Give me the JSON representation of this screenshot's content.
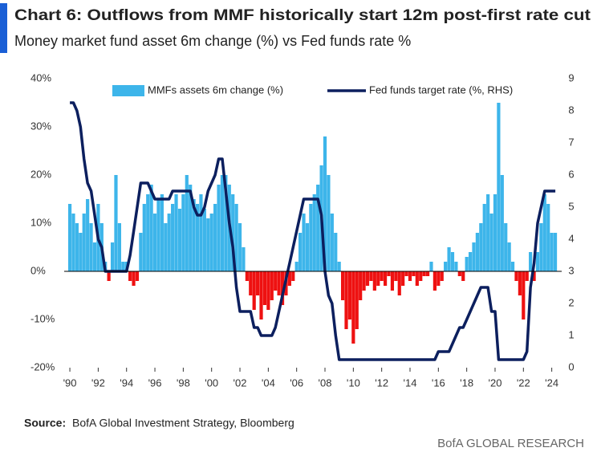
{
  "chart_data": {
    "type": "bar",
    "title": "Chart 6: Outflows from MMF historically start 12m post-first rate cut",
    "subtitle": "Money market fund asset 6m change (%) vs Fed funds rate %",
    "source_label": "Source:",
    "source": "BofA Global Investment Strategy, Bloomberg",
    "brand": "BofA GLOBAL RESEARCH",
    "xlim": [
      1989.6,
      2024.7
    ],
    "xticks": [
      {
        "value": 1990,
        "label": "'90"
      },
      {
        "value": 1992,
        "label": "'92"
      },
      {
        "value": 1994,
        "label": "'94"
      },
      {
        "value": 1996,
        "label": "'96"
      },
      {
        "value": 1998,
        "label": "'98"
      },
      {
        "value": 2000,
        "label": "'00"
      },
      {
        "value": 2002,
        "label": "'02"
      },
      {
        "value": 2004,
        "label": "'04"
      },
      {
        "value": 2006,
        "label": "'06"
      },
      {
        "value": 2008,
        "label": "'08"
      },
      {
        "value": 2010,
        "label": "'10"
      },
      {
        "value": 2012,
        "label": "'12"
      },
      {
        "value": 2014,
        "label": "'14"
      },
      {
        "value": 2016,
        "label": "'16"
      },
      {
        "value": 2018,
        "label": "'18"
      },
      {
        "value": 2020,
        "label": "'20"
      },
      {
        "value": 2022,
        "label": "'22"
      },
      {
        "value": 2024,
        "label": "'24"
      }
    ],
    "ylim": [
      -20,
      40
    ],
    "yticks": [
      {
        "value": -20,
        "label": "-20%"
      },
      {
        "value": -10,
        "label": "-10%"
      },
      {
        "value": 0,
        "label": "0%"
      },
      {
        "value": 10,
        "label": "10%"
      },
      {
        "value": 20,
        "label": "20%"
      },
      {
        "value": 30,
        "label": "30%"
      },
      {
        "value": 40,
        "label": "40%"
      }
    ],
    "y2lim": [
      0,
      9
    ],
    "y2ticks": [
      0,
      1,
      2,
      3,
      4,
      5,
      6,
      7,
      8,
      9
    ],
    "x": [
      1990,
      1990.25,
      1990.5,
      1990.75,
      1991,
      1991.25,
      1991.5,
      1991.75,
      1992,
      1992.25,
      1992.5,
      1992.75,
      1993,
      1993.25,
      1993.5,
      1993.75,
      1994,
      1994.25,
      1994.5,
      1994.75,
      1995,
      1995.25,
      1995.5,
      1995.75,
      1996,
      1996.25,
      1996.5,
      1996.75,
      1997,
      1997.25,
      1997.5,
      1997.75,
      1998,
      1998.25,
      1998.5,
      1998.75,
      1999,
      1999.25,
      1999.5,
      1999.75,
      2000,
      2000.25,
      2000.5,
      2000.75,
      2001,
      2001.25,
      2001.5,
      2001.75,
      2002,
      2002.25,
      2002.5,
      2002.75,
      2003,
      2003.25,
      2003.5,
      2003.75,
      2004,
      2004.25,
      2004.5,
      2004.75,
      2005,
      2005.25,
      2005.5,
      2005.75,
      2006,
      2006.25,
      2006.5,
      2006.75,
      2007,
      2007.25,
      2007.5,
      2007.75,
      2008,
      2008.25,
      2008.5,
      2008.75,
      2009,
      2009.25,
      2009.5,
      2009.75,
      2010,
      2010.25,
      2010.5,
      2010.75,
      2011,
      2011.25,
      2011.5,
      2011.75,
      2012,
      2012.25,
      2012.5,
      2012.75,
      2013,
      2013.25,
      2013.5,
      2013.75,
      2014,
      2014.25,
      2014.5,
      2014.75,
      2015,
      2015.25,
      2015.5,
      2015.75,
      2016,
      2016.25,
      2016.5,
      2016.75,
      2017,
      2017.25,
      2017.5,
      2017.75,
      2018,
      2018.25,
      2018.5,
      2018.75,
      2019,
      2019.25,
      2019.5,
      2019.75,
      2020,
      2020.25,
      2020.5,
      2020.75,
      2021,
      2021.25,
      2021.5,
      2021.75,
      2022,
      2022.25,
      2022.5,
      2022.75,
      2023,
      2023.25,
      2023.5,
      2023.75,
      2024,
      2024.25
    ],
    "series": [
      {
        "name": "MMFs assets 6m change (%)",
        "color": "#3db5ea",
        "negative_color": "#ee1111",
        "values": [
          14,
          12,
          10,
          8,
          12,
          15,
          10,
          6,
          14,
          10,
          2,
          -2,
          6,
          20,
          10,
          2,
          2,
          -2,
          -3,
          -2,
          8,
          14,
          16,
          18,
          12,
          15,
          16,
          10,
          12,
          14,
          16,
          13,
          16,
          20,
          18,
          15,
          14,
          16,
          13,
          11,
          12,
          14,
          18,
          20,
          20,
          18,
          16,
          14,
          10,
          5,
          -2,
          -5,
          -8,
          -5,
          -10,
          -7,
          -8,
          -6,
          -4,
          -5,
          -7,
          -5,
          -3,
          -2,
          2,
          8,
          12,
          10,
          14,
          16,
          18,
          22,
          28,
          20,
          12,
          8,
          2,
          -6,
          -12,
          -10,
          -15,
          -12,
          -6,
          -4,
          -3,
          -2,
          -4,
          -3,
          -2,
          -3,
          -1,
          -4,
          -2,
          -5,
          -3,
          -1,
          -2,
          -1,
          -3,
          -2,
          -1,
          -1,
          2,
          -4,
          -3,
          -2,
          2,
          5,
          4,
          2,
          -1,
          -2,
          3,
          4,
          6,
          8,
          10,
          14,
          16,
          12,
          16,
          35,
          20,
          10,
          6,
          2,
          -2,
          -5,
          -10,
          -2,
          4,
          -2,
          4,
          10,
          16,
          14,
          8,
          8
        ]
      },
      {
        "name": "Fed funds target rate (%, RHS)",
        "color": "#0c1f5e",
        "axis": "y2",
        "values": [
          8.25,
          8.25,
          8.0,
          7.5,
          6.5,
          5.75,
          5.5,
          4.75,
          4.0,
          3.75,
          3.0,
          3.0,
          3.0,
          3.0,
          3.0,
          3.0,
          3.0,
          3.5,
          4.25,
          5.0,
          5.75,
          5.75,
          5.75,
          5.5,
          5.25,
          5.25,
          5.25,
          5.25,
          5.25,
          5.5,
          5.5,
          5.5,
          5.5,
          5.5,
          5.5,
          5.0,
          4.75,
          4.75,
          5.0,
          5.5,
          5.75,
          6.0,
          6.5,
          6.5,
          5.5,
          4.5,
          3.75,
          2.5,
          1.75,
          1.75,
          1.75,
          1.75,
          1.25,
          1.25,
          1.0,
          1.0,
          1.0,
          1.0,
          1.25,
          1.75,
          2.25,
          2.75,
          3.25,
          3.75,
          4.25,
          4.75,
          5.25,
          5.25,
          5.25,
          5.25,
          5.25,
          4.75,
          3.0,
          2.25,
          2.0,
          1.0,
          0.25,
          0.25,
          0.25,
          0.25,
          0.25,
          0.25,
          0.25,
          0.25,
          0.25,
          0.25,
          0.25,
          0.25,
          0.25,
          0.25,
          0.25,
          0.25,
          0.25,
          0.25,
          0.25,
          0.25,
          0.25,
          0.25,
          0.25,
          0.25,
          0.25,
          0.25,
          0.25,
          0.25,
          0.5,
          0.5,
          0.5,
          0.5,
          0.75,
          1.0,
          1.25,
          1.25,
          1.5,
          1.75,
          2.0,
          2.25,
          2.5,
          2.5,
          2.5,
          1.75,
          1.75,
          0.25,
          0.25,
          0.25,
          0.25,
          0.25,
          0.25,
          0.25,
          0.25,
          0.5,
          2.5,
          3.25,
          4.5,
          5.0,
          5.5,
          5.5,
          5.5,
          5.5
        ]
      }
    ]
  }
}
